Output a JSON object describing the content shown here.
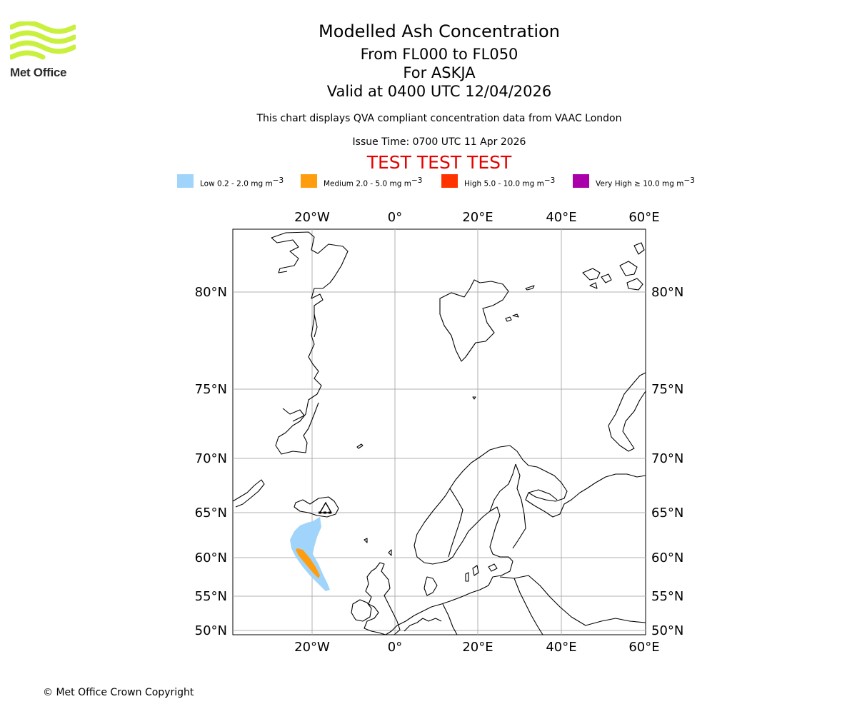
{
  "header": {
    "logo_text": "Met Office",
    "title": "Modelled Ash Concentration",
    "levels": "From FL000 to FL050",
    "volcano": "For ASKJA",
    "valid": "Valid at 0400 UTC 12/04/2026",
    "subtitle": "This chart displays QVA compliant concentration data from VAAC London",
    "issue": "Issue Time: 0700 UTC 11 Apr 2026",
    "test_banner": "TEST TEST TEST"
  },
  "legend": [
    {
      "label": "Low 0.2 - 2.0 mg m",
      "color": "#a0d4fa"
    },
    {
      "label": "Medium 2.0 - 5.0 mg m",
      "color": "#ff9d0e"
    },
    {
      "label": "High 5.0 - 10.0 mg m",
      "color": "#ff3300"
    },
    {
      "label": "Very High ≥ 10.0 mg m",
      "color": "#aa00aa"
    }
  ],
  "legend_unit_exp": "−3",
  "map": {
    "lon_labels": [
      "20°W",
      "0°",
      "20°E",
      "40°E",
      "60°E"
    ],
    "lat_labels": [
      "80°N",
      "75°N",
      "70°N",
      "65°N",
      "60°N",
      "55°N",
      "50°N"
    ],
    "volcano_marker": "volcano-icon"
  },
  "footer": {
    "copyright": "© Met Office Crown Copyright"
  }
}
